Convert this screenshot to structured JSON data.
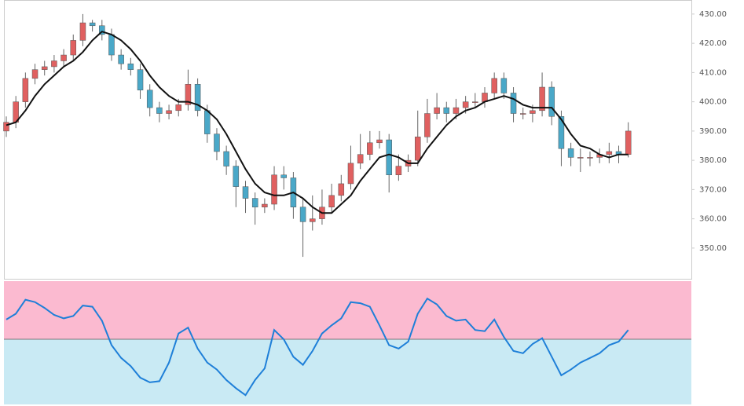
{
  "chart_data": [
    {
      "type": "candlestick",
      "open": [
        390,
        393,
        400,
        408,
        411,
        412,
        414,
        416,
        421,
        427,
        426,
        423,
        416,
        413,
        411,
        404,
        398,
        396,
        397,
        399,
        406,
        397,
        389,
        383,
        378,
        371,
        367,
        364,
        365,
        375,
        374,
        364,
        359,
        360,
        364,
        368,
        372,
        379,
        382,
        386,
        387,
        375,
        378,
        380,
        388,
        396,
        398,
        396,
        398,
        400,
        400,
        403,
        408,
        403,
        396,
        396,
        397,
        405,
        395,
        384,
        381,
        381,
        381,
        382,
        383,
        382
      ],
      "high": [
        395,
        402,
        410,
        413,
        414,
        416,
        418,
        423,
        430,
        428,
        428,
        425,
        418,
        415,
        413,
        406,
        400,
        399,
        401,
        411,
        408,
        399,
        391,
        385,
        380,
        373,
        369,
        367,
        378,
        378,
        376,
        367,
        368,
        370,
        372,
        375,
        385,
        389,
        390,
        390,
        389,
        382,
        382,
        397,
        401,
        403,
        400,
        401,
        402,
        403,
        405,
        410,
        410,
        405,
        398,
        399,
        410,
        407,
        397,
        386,
        384,
        383,
        384,
        386,
        385,
        393
      ],
      "low": [
        388,
        391,
        398,
        406,
        409,
        410,
        412,
        414,
        419,
        424,
        421,
        414,
        411,
        409,
        401,
        395,
        393,
        394,
        395,
        397,
        395,
        386,
        380,
        375,
        364,
        362,
        358,
        362,
        363,
        370,
        360,
        347,
        356,
        358,
        362,
        366,
        370,
        377,
        380,
        384,
        369,
        373,
        376,
        378,
        386,
        394,
        393,
        394,
        396,
        398,
        398,
        401,
        401,
        393,
        394,
        393,
        395,
        392,
        378,
        378,
        376,
        378,
        379,
        379,
        379,
        381
      ],
      "close": [
        393,
        400,
        408,
        411,
        412,
        414,
        416,
        421,
        427,
        426,
        423,
        416,
        413,
        411,
        404,
        398,
        396,
        397,
        399,
        406,
        397,
        389,
        383,
        378,
        371,
        367,
        364,
        365,
        375,
        374,
        364,
        359,
        360,
        364,
        368,
        372,
        379,
        382,
        386,
        387,
        375,
        378,
        380,
        388,
        396,
        398,
        396,
        398,
        400,
        400,
        403,
        408,
        403,
        396,
        396,
        397,
        405,
        395,
        384,
        381,
        381,
        381,
        382,
        383,
        382,
        390
      ],
      "up_color": "#e06060",
      "down_color": "#4aa8c8",
      "ma": {
        "color": "#111111",
        "values": [
          392,
          393,
          397,
          402,
          406,
          409,
          412,
          414,
          417,
          421,
          424,
          423,
          421,
          418,
          414,
          409,
          405,
          402,
          400,
          400,
          399,
          397,
          394,
          389,
          383,
          377,
          372,
          369,
          368,
          368,
          369,
          367,
          364,
          362,
          362,
          365,
          368,
          373,
          377,
          381,
          382,
          381,
          379,
          379,
          384,
          388,
          392,
          395,
          397,
          398,
          400,
          401,
          402,
          401,
          399,
          398,
          398,
          398,
          394,
          389,
          385,
          384,
          382,
          381,
          382,
          382
        ]
      },
      "ylim": [
        339.5,
        434.8
      ],
      "yticks": [
        {
          "value": 350,
          "label": "350.00"
        },
        {
          "value": 360,
          "label": "360.00"
        },
        {
          "value": 370,
          "label": "370.00"
        },
        {
          "value": 380,
          "label": "380.00"
        },
        {
          "value": 390,
          "label": "390.00"
        },
        {
          "value": 400,
          "label": "400.00"
        },
        {
          "value": 410,
          "label": "410.00"
        },
        {
          "value": 420,
          "label": "420.00"
        },
        {
          "value": 430,
          "label": "430.00"
        }
      ]
    },
    {
      "type": "line",
      "values": [
        67,
        72,
        84,
        82,
        77,
        71,
        68,
        70,
        79,
        78,
        66,
        45,
        34,
        27,
        17,
        13,
        14,
        30,
        55,
        60,
        42,
        30,
        24,
        15,
        8,
        2,
        15,
        25,
        58,
        50,
        35,
        28,
        40,
        55,
        62,
        68,
        82,
        81,
        78,
        62,
        45,
        42,
        48,
        72,
        85,
        80,
        70,
        66,
        67,
        58,
        57,
        67,
        52,
        40,
        38,
        46,
        51,
        35,
        19,
        24,
        30,
        34,
        38,
        45,
        48,
        58
      ],
      "color": "#1e7fd8",
      "ylim": [
        -6,
        100
      ],
      "level": 50,
      "upper_color": "#fbbad0",
      "lower_color": "#c9eaf4"
    }
  ]
}
